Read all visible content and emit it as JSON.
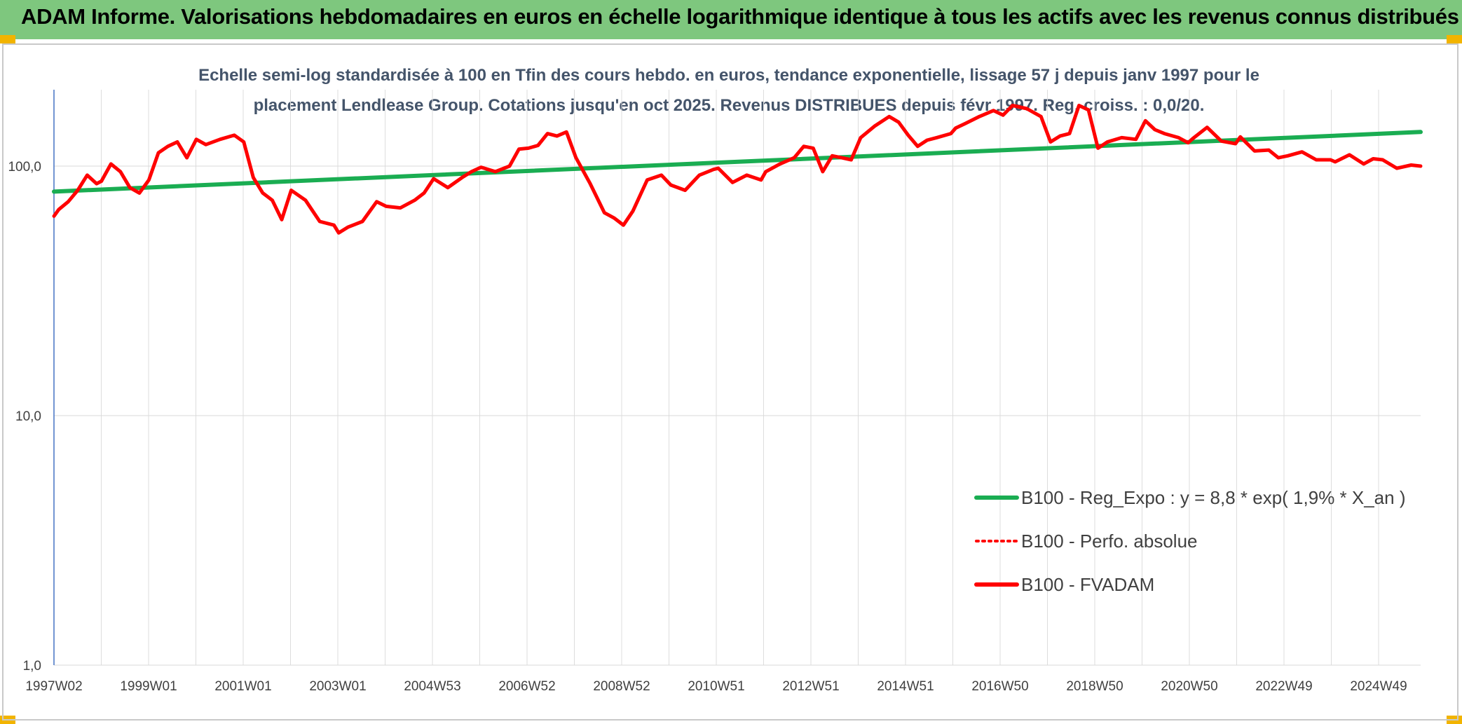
{
  "header": {
    "title": "ADAM Informe. Valorisations hebdomadaires en euros en échelle logarithmique identique à tous les actifs avec les revenus connus distribués",
    "accent_color": "#7ec77e"
  },
  "chart_data": {
    "type": "line",
    "title": "Echelle semi-log standardisée à 100 en Tfin des cours hebdo. en euros, tendance exponentielle, lissage 57 j depuis janv 1997 pour le placement Lendlease Group. Cotations jusqu'en oct 2025. Revenus DISTRIBUES depuis févr 1997. Reg. croiss. : 0,0/20.",
    "xlabel": "",
    "ylabel": "",
    "y_scale": "log",
    "ylim": [
      1,
      200
    ],
    "grid": true,
    "legend_position": "bottom-right",
    "y_ticks": [
      "1,0",
      "10,0",
      "100,0"
    ],
    "x_ticks": [
      "1997W02",
      "1999W01",
      "2001W01",
      "2003W01",
      "2004W53",
      "2006W52",
      "2008W52",
      "2010W51",
      "2012W51",
      "2014W51",
      "2016W50",
      "2018W50",
      "2020W50",
      "2022W49",
      "2024W49"
    ],
    "series": [
      {
        "name": "B100 - Reg_Expo : y = 8,8 * exp( 1,9% *  X_an )",
        "color": "#1aad52",
        "style": "solid",
        "x": [
          1997.0,
          2025.8
        ],
        "values": [
          79,
          137
        ]
      },
      {
        "name": "B100 - Perfo. absolue",
        "color": "#ff0000",
        "style": "dotted",
        "x": [],
        "values": []
      },
      {
        "name": "B100 - FVADAM",
        "color": "#ff0000",
        "style": "solid",
        "x": [
          1997.0,
          1997.1,
          1997.3,
          1997.5,
          1997.7,
          1997.9,
          1998.0,
          1998.2,
          1998.4,
          1998.6,
          1998.8,
          1999.0,
          1999.2,
          1999.4,
          1999.6,
          1999.8,
          2000.0,
          2000.2,
          2000.5,
          2000.8,
          2001.0,
          2001.2,
          2001.4,
          2001.6,
          2001.8,
          2002.0,
          2002.3,
          2002.6,
          2002.9,
          2003.0,
          2003.2,
          2003.5,
          2003.8,
          2004.0,
          2004.3,
          2004.6,
          2004.8,
          2005.0,
          2005.3,
          2005.6,
          2005.8,
          2006.0,
          2006.3,
          2006.6,
          2006.8,
          2007.0,
          2007.2,
          2007.4,
          2007.6,
          2007.8,
          2008.0,
          2008.3,
          2008.6,
          2008.8,
          2009.0,
          2009.2,
          2009.5,
          2009.8,
          2010.0,
          2010.3,
          2010.6,
          2010.9,
          2011.0,
          2011.3,
          2011.6,
          2011.9,
          2012.0,
          2012.3,
          2012.6,
          2012.8,
          2013.0,
          2013.2,
          2013.4,
          2013.6,
          2013.8,
          2014.0,
          2014.3,
          2014.6,
          2014.8,
          2015.0,
          2015.2,
          2015.4,
          2015.6,
          2015.9,
          2016.0,
          2016.2,
          2016.5,
          2016.8,
          2017.0,
          2017.2,
          2017.5,
          2017.8,
          2018.0,
          2018.2,
          2018.4,
          2018.6,
          2018.8,
          2019.0,
          2019.2,
          2019.5,
          2019.8,
          2020.0,
          2020.2,
          2020.4,
          2020.7,
          2020.9,
          2021.0,
          2021.3,
          2021.6,
          2021.9,
          2022.0,
          2022.3,
          2022.6,
          2022.8,
          2023.0,
          2023.3,
          2023.6,
          2023.9,
          2024.0,
          2024.3,
          2024.6,
          2024.8,
          2025.0,
          2025.3,
          2025.6,
          2025.8
        ],
        "values": [
          63,
          67,
          72,
          80,
          92,
          85,
          87,
          102,
          95,
          82,
          78,
          88,
          113,
          120,
          125,
          108,
          128,
          122,
          128,
          133,
          125,
          90,
          78,
          73,
          61,
          80,
          73,
          60,
          58,
          54,
          57,
          60,
          72,
          69,
          68,
          73,
          78,
          89,
          82,
          90,
          95,
          99,
          95,
          100,
          117,
          118,
          121,
          135,
          132,
          137,
          108,
          85,
          65,
          62,
          58,
          66,
          88,
          92,
          84,
          80,
          92,
          97,
          98,
          86,
          92,
          88,
          95,
          102,
          108,
          120,
          118,
          95,
          110,
          108,
          106,
          130,
          145,
          158,
          150,
          133,
          120,
          127,
          130,
          135,
          142,
          148,
          158,
          167,
          160,
          175,
          170,
          158,
          125,
          132,
          135,
          175,
          168,
          118,
          125,
          130,
          128,
          152,
          140,
          135,
          130,
          124,
          129,
          143,
          126,
          123,
          131,
          115,
          116,
          108,
          110,
          114,
          106,
          106,
          104,
          111,
          102,
          107,
          106,
          98,
          101,
          100
        ]
      }
    ]
  }
}
